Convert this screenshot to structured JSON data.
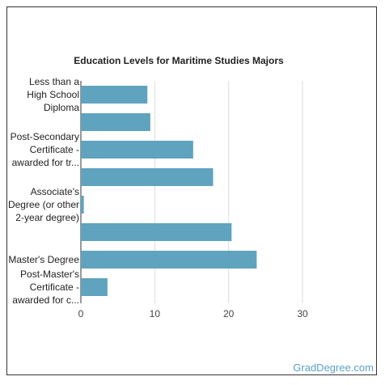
{
  "chart_data": {
    "type": "bar",
    "orientation": "horizontal",
    "title": "Education Levels for Maritime Studies Majors",
    "xlabel": "",
    "ylabel": "",
    "xlim": [
      0,
      30
    ],
    "xticks": [
      0,
      10,
      20,
      30
    ],
    "grid": true,
    "legend": "none",
    "bar_color": "#5fa3be",
    "categories": [
      [
        "Less than a",
        "High School",
        "Diploma"
      ],
      [],
      [
        "Post-Secondary",
        "Certificate -",
        "awarded for tr..."
      ],
      [],
      [
        "Associate's",
        "Degree (or other",
        "2-year degree)"
      ],
      [],
      [
        "Master's Degree"
      ],
      [
        "Post-Master's",
        "Certificate -",
        "awarded for c..."
      ]
    ],
    "values": [
      9.0,
      9.4,
      15.2,
      17.9,
      0.4,
      20.4,
      23.8,
      3.6
    ]
  },
  "watermark": "GradDegree.com"
}
